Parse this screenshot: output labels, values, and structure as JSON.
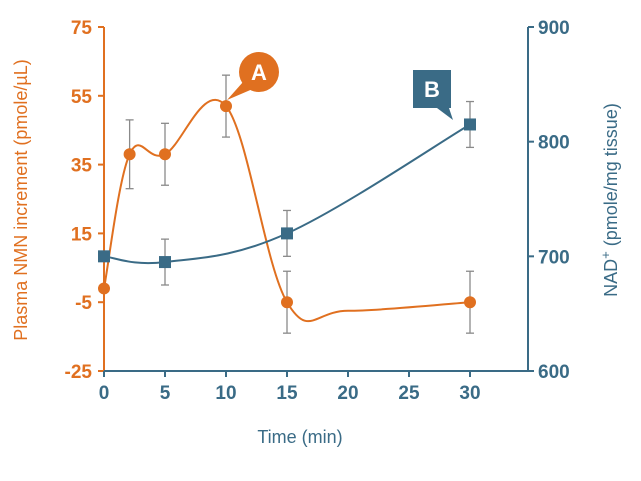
{
  "chart_data": {
    "type": "line",
    "xlabel": "Time (min)",
    "x_ticks": [
      "0",
      "5",
      "10",
      "15",
      "20",
      "25",
      "30"
    ],
    "xlim": [
      0,
      35
    ],
    "y_left": {
      "label": "Plasma NMN increment  (pmole/µL)",
      "ticks": [
        "75",
        "55",
        "35",
        "15",
        "-5",
        "-25"
      ],
      "ylim": [
        -25,
        75
      ],
      "color": "#e07020"
    },
    "y_right": {
      "label_main": "NAD",
      "label_sup": "+",
      "label_rest": " (pmole/mg tissue)",
      "ticks": [
        "900",
        "800",
        "700",
        "600"
      ],
      "ylim": [
        600,
        900
      ],
      "color": "#3a6b86"
    },
    "series": [
      {
        "axis": "left",
        "color": "#e07020",
        "marker": "circle",
        "x": [
          0,
          2.1,
          5,
          10,
          15,
          30
        ],
        "y": [
          -1,
          38,
          38,
          52,
          -5,
          -5
        ],
        "err": [
          0,
          10,
          9,
          9,
          9,
          9
        ],
        "callout": "A"
      },
      {
        "axis": "right",
        "color": "#3a6b86",
        "marker": "square",
        "x": [
          0,
          5,
          15,
          30
        ],
        "y": [
          700,
          695,
          720,
          815
        ],
        "err": [
          0,
          20,
          20,
          20
        ],
        "callout": "B"
      }
    ],
    "grid": false,
    "legend": "none"
  }
}
